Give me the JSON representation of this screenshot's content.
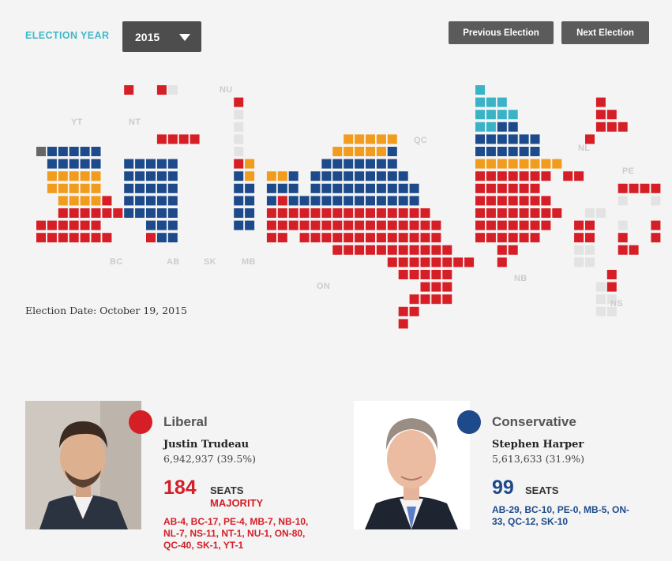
{
  "header": {
    "election_year_label": "ELECTION YEAR",
    "selected_year": "2015",
    "prev_label": "Previous Election",
    "next_label": "Next Election"
  },
  "colors": {
    "liberal": "#d51e26",
    "conservative": "#1d4a8a",
    "ndp": "#f29c1e",
    "bloc": "#3bb3c7",
    "green": "#666666",
    "empty": "#e3e3e3",
    "accent": "#3fb8c8"
  },
  "province_labels": {
    "YT": "YT",
    "NT": "NT",
    "NU": "NU",
    "BC": "BC",
    "AB": "AB",
    "SK": "SK",
    "MB": "MB",
    "ON": "ON",
    "QC": "QC",
    "NL": "NL",
    "PE": "PE",
    "NB": "NB",
    "NS": "NS"
  },
  "election_date": "Election Date: October 19, 2015",
  "parties": [
    {
      "name": "Liberal",
      "leader": "Justin Trudeau",
      "votes": "6,942,937 (39.5%)",
      "seats": "184",
      "seats_label": "SEATS",
      "status": "MAJORITY",
      "breakdown": "AB-4, BC-17, PE-4, MB-7, NB-10, NL-7, NS-11, NT-1, NU-1, ON-80, QC-40, SK-1, YT-1",
      "color": "#d51e26"
    },
    {
      "name": "Conservative",
      "leader": "Stephen Harper",
      "votes": "5,613,633 (31.9%)",
      "seats": "99",
      "seats_label": "SEATS",
      "status": "",
      "breakdown": "AB-29, BC-10, PE-0, MB-5, ON-33, QC-12, SK-10",
      "color": "#1d4a8a"
    }
  ]
}
